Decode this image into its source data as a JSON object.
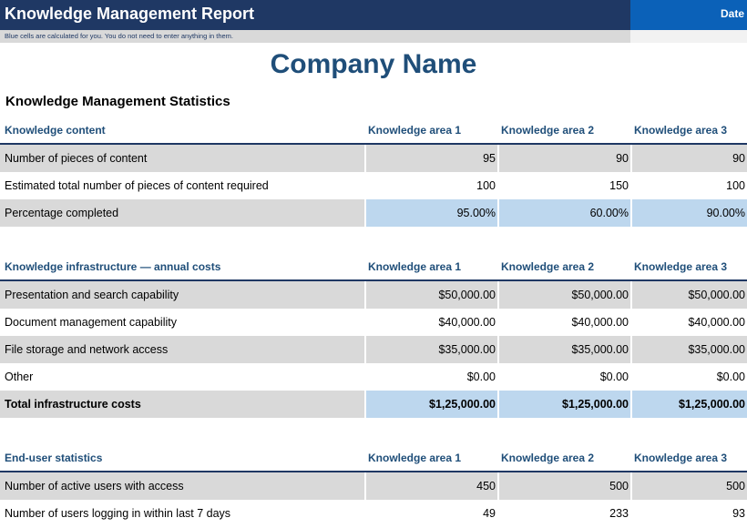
{
  "header": {
    "title": "Knowledge Management Report",
    "date_label": "Date",
    "note": "Blue cells are calculated for you. You do not need to enter anything in them."
  },
  "company_name": "Company Name",
  "section_title": "Knowledge Management Statistics",
  "colors": {
    "banner": "#1f3864",
    "date_box": "#0b61b8",
    "calc_cell": "#bdd7ee",
    "gray_row": "#d9d9d9"
  },
  "tables": [
    {
      "header": [
        "Knowledge content",
        "Knowledge area 1",
        "Knowledge area 2",
        "Knowledge area 3"
      ],
      "rows": [
        {
          "cells": [
            "Number of pieces of content",
            "95",
            "90",
            "90"
          ]
        },
        {
          "cells": [
            "Estimated total number of pieces of content required",
            "100",
            "150",
            "100"
          ]
        },
        {
          "cells": [
            "Percentage completed",
            "95.00%",
            "60.00%",
            "90.00%"
          ]
        }
      ]
    },
    {
      "header": [
        "Knowledge infrastructure — annual costs",
        "Knowledge area 1",
        "Knowledge area 2",
        "Knowledge area 3"
      ],
      "rows": [
        {
          "cells": [
            "Presentation and search capability",
            "$50,000.00",
            "$50,000.00",
            "$50,000.00"
          ]
        },
        {
          "cells": [
            "Document management capability",
            "$40,000.00",
            "$40,000.00",
            "$40,000.00"
          ]
        },
        {
          "cells": [
            "File storage and network access",
            "$35,000.00",
            "$35,000.00",
            "$35,000.00"
          ]
        },
        {
          "cells": [
            "Other",
            "$0.00",
            "$0.00",
            "$0.00"
          ]
        },
        {
          "cells": [
            "Total infrastructure costs",
            "$1,25,000.00",
            "$1,25,000.00",
            "$1,25,000.00"
          ]
        }
      ]
    },
    {
      "header": [
        "End-user statistics",
        "Knowledge area 1",
        "Knowledge area 2",
        "Knowledge area 3"
      ],
      "rows": [
        {
          "cells": [
            "Number of active users with access",
            "450",
            "500",
            "500"
          ]
        },
        {
          "cells": [
            "Number of users logging in within last 7 days",
            "49",
            "233",
            "93"
          ]
        }
      ]
    }
  ]
}
